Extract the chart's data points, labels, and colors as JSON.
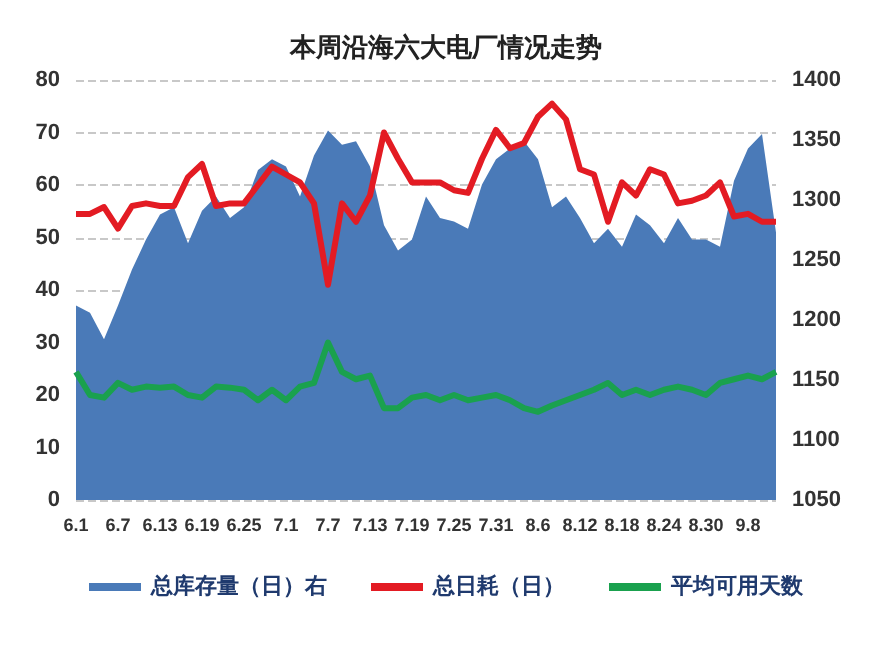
{
  "chart_data": {
    "type": "line",
    "title": "本周沿海六大电厂情况走势",
    "categories": [
      "6.1",
      null,
      null,
      "6.7",
      null,
      null,
      "6.13",
      null,
      null,
      "6.19",
      null,
      null,
      "6.25",
      null,
      null,
      "7.1",
      null,
      null,
      "7.7",
      null,
      null,
      "7.13",
      null,
      null,
      "7.19",
      null,
      null,
      "7.25",
      null,
      null,
      "7.31",
      null,
      null,
      "8.6",
      null,
      null,
      "8.12",
      null,
      null,
      "8.18",
      null,
      null,
      "8.24",
      null,
      null,
      "8.30",
      null,
      null,
      "9.8",
      null,
      null
    ],
    "series": [
      {
        "name": "总库存量（日）右",
        "type": "area",
        "axis": "y2",
        "color": "#4a7ab8",
        "values": [
          1212,
          1206,
          1184,
          1212,
          1242,
          1267,
          1288,
          1294,
          1264,
          1291,
          1303,
          1285,
          1294,
          1325,
          1334,
          1328,
          1303,
          1337,
          1358,
          1346,
          1349,
          1328,
          1279,
          1258,
          1267,
          1303,
          1285,
          1282,
          1276,
          1313,
          1334,
          1343,
          1349,
          1334,
          1294,
          1303,
          1285,
          1264,
          1276,
          1261,
          1288,
          1279,
          1264,
          1285,
          1267,
          1267,
          1261,
          1316,
          1343,
          1355,
          1273
        ]
      },
      {
        "name": "总日耗（日）",
        "color": "#e31b23",
        "values": [
          54.5,
          54.5,
          55.8,
          51.7,
          56,
          56.5,
          56,
          56,
          61.5,
          64,
          56,
          56.5,
          56.5,
          60,
          63.5,
          62,
          60.5,
          56.5,
          41,
          56.5,
          53,
          58,
          70,
          65,
          60.5,
          60.5,
          60.5,
          59,
          58.5,
          65,
          70.5,
          67,
          68,
          73,
          75.5,
          72.5,
          63,
          62,
          53,
          60.5,
          58,
          63,
          62,
          56.5,
          57,
          58,
          60.5,
          54,
          54.5,
          53,
          53
        ]
      },
      {
        "name": "平均可用天数",
        "color": "#1aa14e",
        "values": [
          24.4,
          20,
          19.5,
          22.3,
          21,
          21.6,
          21.4,
          21.6,
          20,
          19.5,
          21.6,
          21.4,
          21,
          19,
          21,
          19,
          21.6,
          22.3,
          30,
          24.4,
          23,
          23.7,
          17.5,
          17.5,
          19.5,
          20,
          19,
          20,
          19,
          19.5,
          20,
          19,
          17.5,
          16.8,
          18,
          19,
          20,
          21,
          22.3,
          20,
          21,
          20,
          21,
          21.6,
          21,
          20,
          22.3,
          23,
          23.7,
          23,
          24.4
        ]
      }
    ],
    "ylim": [
      0,
      80
    ],
    "yticks": [
      0,
      10,
      20,
      30,
      40,
      50,
      60,
      70,
      80
    ],
    "y2lim": [
      1050,
      1400
    ],
    "y2ticks": [
      1050,
      1100,
      1150,
      1200,
      1250,
      1300,
      1350,
      1400
    ],
    "grid": "y",
    "legend": "bottom",
    "marker": "none",
    "line_style": "solid"
  }
}
